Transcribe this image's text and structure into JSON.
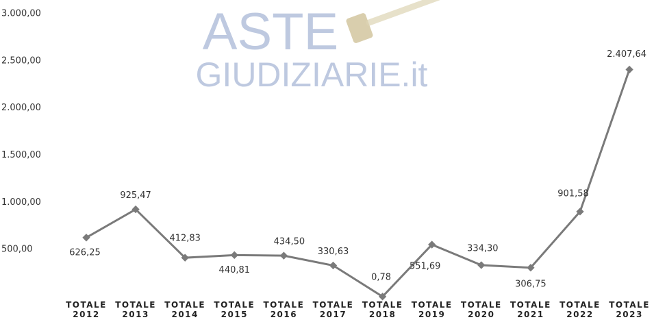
{
  "watermark": {
    "line1": "ASTE",
    "line2": "GIUDIZIARIE.it"
  },
  "chart_data": {
    "type": "line",
    "categories": [
      "TOTALE 2012",
      "TOTALE 2013",
      "TOTALE 2014",
      "TOTALE 2015",
      "TOTALE 2016",
      "TOTALE 2017",
      "TOTALE 2018",
      "TOTALE 2019",
      "TOTALE 2020",
      "TOTALE 2021",
      "TOTALE 2022",
      "TOTALE 2023"
    ],
    "values": [
      626.25,
      925.47,
      412.83,
      440.81,
      434.5,
      330.63,
      0.78,
      551.69,
      334.3,
      306.75,
      901.58,
      2407.64
    ],
    "value_labels": [
      "626,25",
      "925,47",
      "412,83",
      "440,81",
      "434,50",
      "330,63",
      "0,78",
      "551,69",
      "334,30",
      "306,75",
      "901,58",
      "2.407,64"
    ],
    "color": "#7a7a7a",
    "ylim": [
      0,
      3000
    ],
    "yticks": [
      {
        "value": 500,
        "label": "500,00"
      },
      {
        "value": 1000,
        "label": "1.000,00"
      },
      {
        "value": 1500,
        "label": "1.500,00"
      },
      {
        "value": 2000,
        "label": "2.000,00"
      },
      {
        "value": 2500,
        "label": "2.500,00"
      },
      {
        "value": 3000,
        "label": "3.000,00"
      }
    ],
    "grid": false
  }
}
